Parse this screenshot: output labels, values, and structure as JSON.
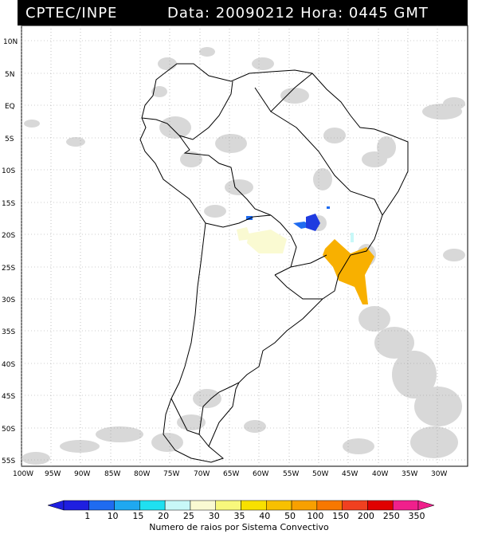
{
  "header": {
    "source": "CPTEC/INPE",
    "datetime": "Data: 20090212 Hora: 0445 GMT"
  },
  "lat_labels": [
    "10N",
    "5N",
    "EQ",
    "5S",
    "10S",
    "15S",
    "20S",
    "25S",
    "30S",
    "35S",
    "40S",
    "45S",
    "50S",
    "55S"
  ],
  "lon_labels": [
    "100W",
    "95W",
    "90W",
    "85W",
    "80W",
    "75W",
    "70W",
    "65W",
    "60W",
    "55W",
    "50W",
    "45W",
    "40W",
    "35W",
    "30W"
  ],
  "legend": {
    "title": "Numero de raios por Sistema Convectivo",
    "ticks": [
      "1",
      "10",
      "15",
      "20",
      "25",
      "30",
      "35",
      "40",
      "50",
      "100",
      "150",
      "200",
      "250",
      "350"
    ],
    "colors": [
      "#1f1fe0",
      "#1f6bf0",
      "#1fa8f0",
      "#1fe0f0",
      "#c8f8f8",
      "#fafad2",
      "#f8f87c",
      "#f8e000",
      "#f8c000",
      "#f8a000",
      "#f87800",
      "#f04020",
      "#e00000",
      "#f0208c"
    ]
  }
}
